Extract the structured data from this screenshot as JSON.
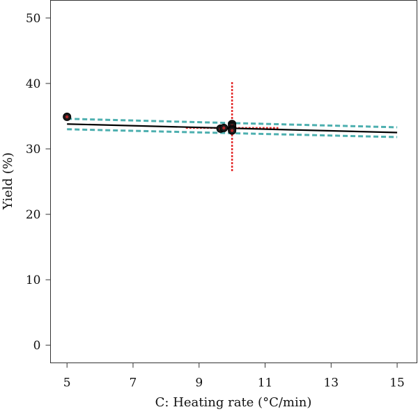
{
  "chart_data": {
    "type": "line",
    "title": "",
    "xlabel": "C: Heating rate (°C/min)",
    "ylabel": "Yield (%)",
    "xlim": [
      4.5,
      15.6
    ],
    "ylim": [
      -2.7,
      52.7
    ],
    "xticks": [
      5,
      7,
      9,
      11,
      13,
      15
    ],
    "yticks": [
      0,
      10,
      20,
      30,
      40,
      50
    ],
    "grid": false,
    "legend": "none",
    "series": [
      {
        "role": "fit",
        "color": "#000000",
        "x": [
          5,
          15
        ],
        "y": [
          33.8,
          32.5
        ]
      },
      {
        "role": "confidence-band-upper",
        "color": "#3aa6a6",
        "x": [
          5,
          15
        ],
        "y": [
          34.6,
          33.3
        ]
      },
      {
        "role": "confidence-band-lower",
        "color": "#3aa6a6",
        "x": [
          5,
          15
        ],
        "y": [
          33.0,
          31.8
        ]
      },
      {
        "role": "current-factor-setting",
        "color": "#e32a2a",
        "x": [
          10,
          10
        ],
        "y": [
          26.6,
          40.2
        ]
      },
      {
        "role": "prediction-marker",
        "color": "#e32a2a",
        "x": [
          8.6,
          11.4
        ],
        "y": [
          33.2,
          33.2
        ]
      },
      {
        "role": "design-points",
        "type": "scatter",
        "color": "#1a1a1a",
        "x": [
          5,
          9.65,
          9.75,
          10,
          10,
          10,
          10
        ],
        "y": [
          34.9,
          33.1,
          33.2,
          33.8,
          33.5,
          33.0,
          32.8
        ]
      }
    ]
  }
}
